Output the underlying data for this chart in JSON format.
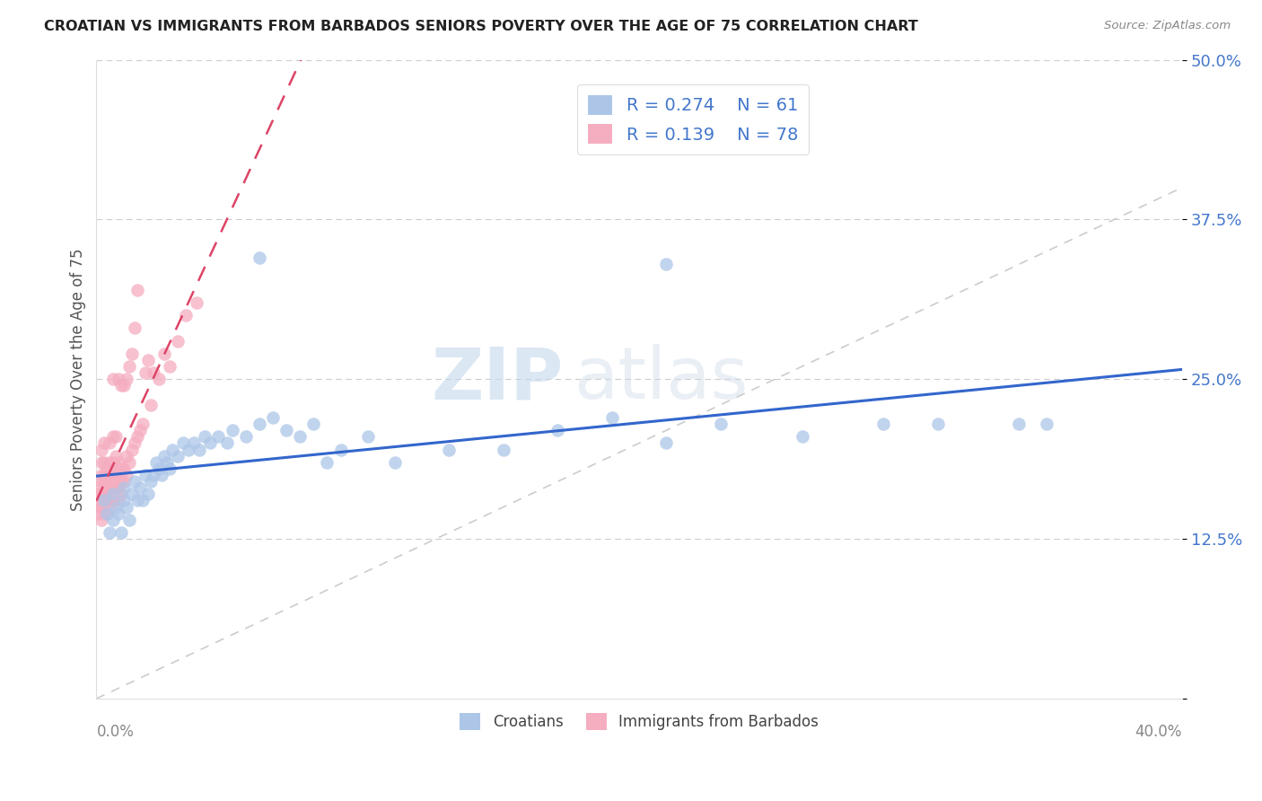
{
  "title": "CROATIAN VS IMMIGRANTS FROM BARBADOS SENIORS POVERTY OVER THE AGE OF 75 CORRELATION CHART",
  "source": "Source: ZipAtlas.com",
  "ylabel": "Seniors Poverty Over the Age of 75",
  "y_ticks": [
    0.0,
    0.125,
    0.25,
    0.375,
    0.5
  ],
  "y_tick_labels": [
    "",
    "12.5%",
    "25.0%",
    "37.5%",
    "50.0%"
  ],
  "x_range": [
    0.0,
    0.4
  ],
  "y_range": [
    0.0,
    0.5
  ],
  "legend_r1": "R = 0.274",
  "legend_n1": "N = 61",
  "legend_r2": "R = 0.139",
  "legend_n2": "N = 78",
  "color_blue": "#adc6e8",
  "color_pink": "#f5adc0",
  "color_blue_text": "#4477cc",
  "line_blue": "#3366cc",
  "line_pink": "#dd4466",
  "line_diag": "#cccccc",
  "watermark_zip": "ZIP",
  "watermark_atlas": "atlas",
  "croatians_x": [
    0.003,
    0.004,
    0.005,
    0.006,
    0.006,
    0.007,
    0.008,
    0.009,
    0.01,
    0.01,
    0.011,
    0.012,
    0.013,
    0.014,
    0.015,
    0.016,
    0.017,
    0.018,
    0.019,
    0.02,
    0.021,
    0.022,
    0.023,
    0.024,
    0.025,
    0.026,
    0.027,
    0.028,
    0.03,
    0.032,
    0.034,
    0.036,
    0.038,
    0.04,
    0.042,
    0.045,
    0.048,
    0.05,
    0.055,
    0.06,
    0.065,
    0.07,
    0.075,
    0.08,
    0.09,
    0.1,
    0.11,
    0.13,
    0.15,
    0.17,
    0.19,
    0.21,
    0.23,
    0.26,
    0.29,
    0.31,
    0.34,
    0.35,
    0.06,
    0.085,
    0.21
  ],
  "croatians_y": [
    0.155,
    0.145,
    0.13,
    0.16,
    0.14,
    0.15,
    0.145,
    0.13,
    0.155,
    0.165,
    0.15,
    0.14,
    0.16,
    0.17,
    0.155,
    0.165,
    0.155,
    0.175,
    0.16,
    0.17,
    0.175,
    0.185,
    0.18,
    0.175,
    0.19,
    0.185,
    0.18,
    0.195,
    0.19,
    0.2,
    0.195,
    0.2,
    0.195,
    0.205,
    0.2,
    0.205,
    0.2,
    0.21,
    0.205,
    0.215,
    0.22,
    0.21,
    0.205,
    0.215,
    0.195,
    0.205,
    0.185,
    0.195,
    0.195,
    0.21,
    0.22,
    0.2,
    0.215,
    0.205,
    0.215,
    0.215,
    0.215,
    0.215,
    0.345,
    0.185,
    0.34
  ],
  "barbados_x": [
    0.001,
    0.001,
    0.001,
    0.001,
    0.001,
    0.002,
    0.002,
    0.002,
    0.002,
    0.002,
    0.002,
    0.002,
    0.002,
    0.003,
    0.003,
    0.003,
    0.003,
    0.003,
    0.003,
    0.003,
    0.004,
    0.004,
    0.004,
    0.004,
    0.004,
    0.005,
    0.005,
    0.005,
    0.005,
    0.005,
    0.005,
    0.005,
    0.006,
    0.006,
    0.006,
    0.006,
    0.006,
    0.006,
    0.007,
    0.007,
    0.007,
    0.007,
    0.007,
    0.008,
    0.008,
    0.008,
    0.008,
    0.008,
    0.009,
    0.009,
    0.009,
    0.009,
    0.01,
    0.01,
    0.01,
    0.011,
    0.011,
    0.011,
    0.012,
    0.012,
    0.013,
    0.013,
    0.014,
    0.014,
    0.015,
    0.015,
    0.016,
    0.017,
    0.018,
    0.019,
    0.02,
    0.021,
    0.023,
    0.025,
    0.027,
    0.03,
    0.033,
    0.037
  ],
  "barbados_y": [
    0.145,
    0.15,
    0.155,
    0.16,
    0.165,
    0.14,
    0.15,
    0.155,
    0.16,
    0.17,
    0.175,
    0.185,
    0.195,
    0.145,
    0.155,
    0.16,
    0.17,
    0.175,
    0.185,
    0.2,
    0.145,
    0.155,
    0.165,
    0.175,
    0.18,
    0.15,
    0.155,
    0.165,
    0.17,
    0.175,
    0.185,
    0.2,
    0.155,
    0.165,
    0.175,
    0.185,
    0.205,
    0.25,
    0.165,
    0.175,
    0.18,
    0.19,
    0.205,
    0.155,
    0.165,
    0.175,
    0.185,
    0.25,
    0.16,
    0.17,
    0.18,
    0.245,
    0.17,
    0.18,
    0.245,
    0.175,
    0.19,
    0.25,
    0.185,
    0.26,
    0.195,
    0.27,
    0.2,
    0.29,
    0.205,
    0.32,
    0.21,
    0.215,
    0.255,
    0.265,
    0.23,
    0.255,
    0.25,
    0.27,
    0.26,
    0.28,
    0.3,
    0.31
  ]
}
